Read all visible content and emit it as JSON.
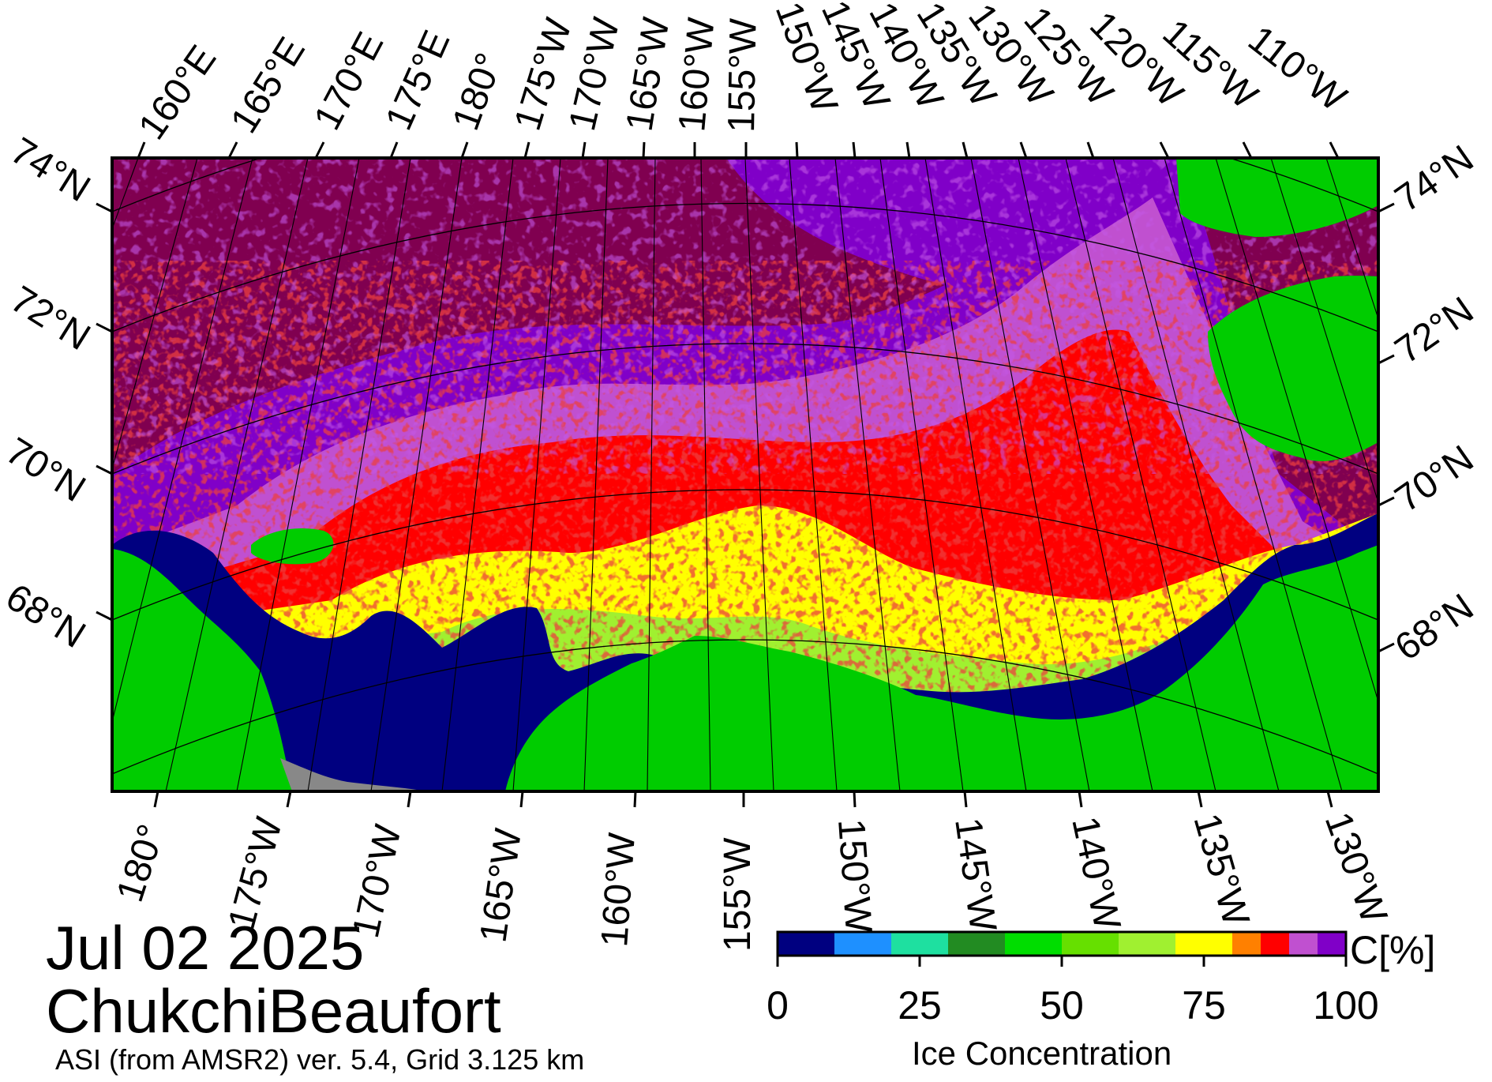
{
  "title": {
    "date": "Jul 02 2025",
    "region": "ChukchiBeaufort",
    "subtitle": "ASI (from AMSR2) ver. 5.4,  Grid 3.125 km"
  },
  "map": {
    "top_longitude_labels": [
      "160°E",
      "165°E",
      "170°E",
      "175°E",
      "180°",
      "175°W",
      "170°W",
      "165°W",
      "160°W",
      "155°W",
      "150°W",
      "145°W",
      "140°W",
      "135°W",
      "130°W",
      "125°W",
      "120°W",
      "115°W",
      "110°W"
    ],
    "bottom_longitude_labels": [
      "180°",
      "175°W",
      "170°W",
      "165°W",
      "160°W",
      "155°W",
      "150°W",
      "145°W",
      "140°W",
      "135°W",
      "130°W"
    ],
    "left_latitude_labels": [
      "74°N",
      "72°N",
      "70°N",
      "68°N"
    ],
    "right_latitude_labels": [
      "74°N",
      "72°N",
      "70°N",
      "68°N"
    ],
    "colors": {
      "land": "#00cc00",
      "open_water": "#000080",
      "high_ice": "#800050",
      "missing": "#888888",
      "frame": "#000000"
    }
  },
  "colorbar": {
    "title": "Ice Concentration",
    "unit": "C[%]",
    "tick_labels": [
      "0",
      "25",
      "50",
      "75",
      "100"
    ],
    "range": [
      0,
      100
    ],
    "bins": [
      {
        "from": 0,
        "to": 10,
        "color": "#000080"
      },
      {
        "from": 10,
        "to": 20,
        "color": "#1e90ff"
      },
      {
        "from": 20,
        "to": 30,
        "color": "#1ee0a0"
      },
      {
        "from": 30,
        "to": 40,
        "color": "#228b22"
      },
      {
        "from": 40,
        "to": 50,
        "color": "#00dd00"
      },
      {
        "from": 50,
        "to": 60,
        "color": "#66e000"
      },
      {
        "from": 60,
        "to": 70,
        "color": "#a0f030"
      },
      {
        "from": 70,
        "to": 80,
        "color": "#ffff00"
      },
      {
        "from": 80,
        "to": 85,
        "color": "#ff8000"
      },
      {
        "from": 85,
        "to": 90,
        "color": "#ff0000"
      },
      {
        "from": 90,
        "to": 95,
        "color": "#c050d0"
      },
      {
        "from": 95,
        "to": 100,
        "color": "#8000c8"
      }
    ]
  }
}
